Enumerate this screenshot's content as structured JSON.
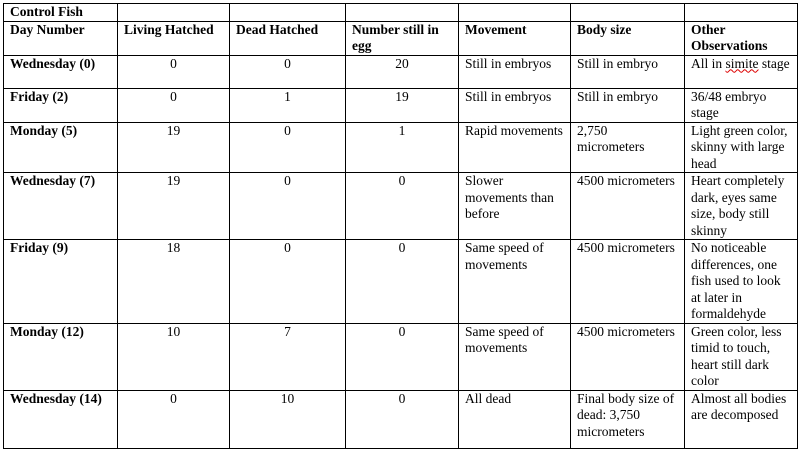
{
  "title": "Control Fish",
  "headers": [
    "Day Number",
    "Living Hatched",
    "Dead Hatched",
    "Number still in egg",
    "Movement",
    "Body size",
    "Other Observations"
  ],
  "rows": [
    [
      "Wednesday (0)",
      "0",
      "0",
      "20",
      "Still in embryos",
      "Still in embryo",
      "All in simite stage"
    ],
    [
      "Friday (2)",
      "0",
      "1",
      "19",
      "Still in embryos",
      "Still in embryo",
      "36/48 embryo stage"
    ],
    [
      "Monday (5)",
      "19",
      "0",
      "1",
      "Rapid movements",
      "2,750 micrometers",
      "Light green color, skinny with large head"
    ],
    [
      "Wednesday (7)",
      "19",
      "0",
      "0",
      "Slower movements than before",
      "4500 micrometers",
      "Heart completely dark, eyes same size, body still skinny"
    ],
    [
      "Friday (9)",
      "18",
      "0",
      "0",
      "Same speed of movements",
      "4500 micrometers",
      "No noticeable differences, one fish used to look at later in formaldehyde"
    ],
    [
      "Monday (12)",
      "10",
      "7",
      "0",
      "Same speed of movements",
      "4500 micrometers",
      "Green color, less timid to touch, heart still dark color"
    ],
    [
      "Wednesday (14)",
      "0",
      "10",
      "0",
      "All dead",
      "Final body size of dead:  3,750 micrometers",
      "Almost all bodies are decomposed"
    ]
  ]
}
